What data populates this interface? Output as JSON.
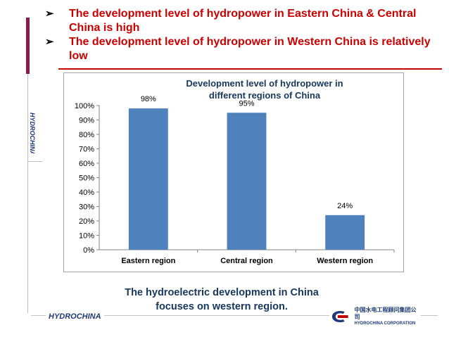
{
  "slide": {
    "bullets": [
      "The development level of hydropower in Eastern China & Central China is high",
      "The development level of hydropower in Western China is relatively low"
    ],
    "caption": "The hydroelectric development in China focuses on western region.",
    "footer_logo_text": "HYDROCHINA",
    "vertical_logo_text": "HYDROCHINA",
    "corp_logo_cn": "中国水电工程顾问集团公司",
    "corp_logo_en": "HYDROCHINA CORPORATION"
  },
  "colors": {
    "bullet_text": "#cc0000",
    "bar": "#4f81bd",
    "title": "#17375e",
    "accent_bar": "#8b1a4a"
  },
  "chart_data": {
    "type": "bar",
    "title": "Development level of hydropower in different regions of China",
    "categories": [
      "Eastern region",
      "Central region",
      "Western region"
    ],
    "values": [
      98,
      95,
      24
    ],
    "data_labels": [
      "98%",
      "95%",
      "24%"
    ],
    "yticks": [
      "0%",
      "10%",
      "20%",
      "30%",
      "40%",
      "50%",
      "60%",
      "70%",
      "80%",
      "90%",
      "100%"
    ],
    "ylim": [
      0,
      100
    ],
    "xlabel": "",
    "ylabel": "",
    "grid": false,
    "legend": "none"
  }
}
